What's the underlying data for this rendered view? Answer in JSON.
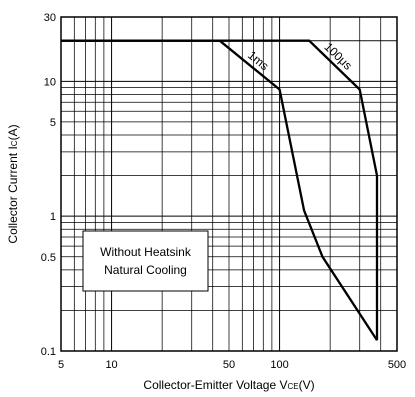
{
  "chart_data": {
    "type": "line",
    "x_scale": "log",
    "y_scale": "log",
    "xlim": [
      5,
      500
    ],
    "ylim": [
      0.1,
      30
    ],
    "grid": true,
    "x_ticks": [
      {
        "value": 5,
        "label": "5"
      },
      {
        "value": 10,
        "label": "10"
      },
      {
        "value": 50,
        "label": "50"
      },
      {
        "value": 100,
        "label": "100"
      },
      {
        "value": 500,
        "label": "500"
      }
    ],
    "y_ticks": [
      {
        "value": 0.1,
        "label": "0.1"
      },
      {
        "value": 0.5,
        "label": "0.5"
      },
      {
        "value": 1,
        "label": "1"
      },
      {
        "value": 5,
        "label": "5"
      },
      {
        "value": 10,
        "label": "10"
      },
      {
        "value": 30,
        "label": "30"
      }
    ],
    "xlabel": {
      "prefix": "Collector-Emitter Voltage V",
      "sub": "CE",
      "suffix": "(V)"
    },
    "ylabel": {
      "prefix": "Collector Current I",
      "sub": "C",
      "suffix": "(A)"
    },
    "annotation": [
      "Without Heatsink",
      "Natural Cooling"
    ],
    "series": [
      {
        "name": "1ms",
        "points": [
          [
            5,
            20
          ],
          [
            44,
            20
          ],
          [
            100,
            8.7
          ],
          [
            140,
            1.1
          ],
          [
            180,
            0.5
          ],
          [
            380,
            0.12
          ]
        ]
      },
      {
        "name": "100μs",
        "points": [
          [
            5,
            20
          ],
          [
            150,
            20
          ],
          [
            300,
            8.7
          ],
          [
            380,
            2.0
          ],
          [
            380,
            0.12
          ]
        ]
      }
    ]
  }
}
